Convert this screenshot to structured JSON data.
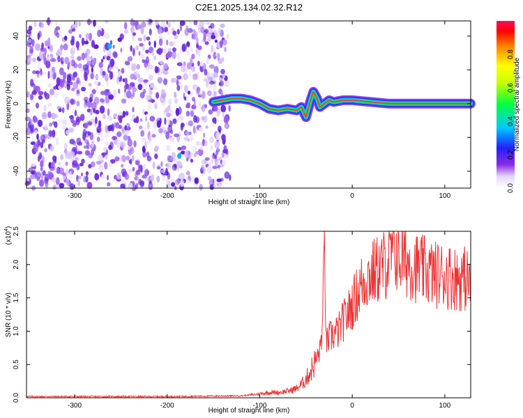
{
  "title": "C2E1.2025.134.02.32.R12",
  "chart_data": [
    {
      "type": "heatmap",
      "xlabel": "Height of straight line (km)",
      "ylabel": "Frequency (Hz)",
      "xlim": [
        -352,
        128
      ],
      "ylim": [
        -50,
        49
      ],
      "xticks": [
        -300,
        -200,
        -100,
        0,
        100
      ],
      "yticks": [
        -40,
        -20,
        0,
        20,
        40
      ],
      "colorbar": {
        "label": "Normalized spectral amplitude",
        "range": [
          0,
          1
        ],
        "ticks": [
          0.0,
          0.2,
          0.4,
          0.6,
          0.8
        ]
      },
      "noise_region_x": [
        -352,
        -132
      ],
      "signal_trace": {
        "x": [
          -150,
          -130,
          -120,
          -110,
          -100,
          -90,
          -80,
          -70,
          -60,
          -55,
          -50,
          -45,
          -42,
          -38,
          -35,
          -30,
          -25,
          -20,
          -10,
          0,
          20,
          40,
          60,
          80,
          100,
          128
        ],
        "y": [
          1,
          3,
          3,
          2,
          0,
          -3,
          -4,
          -3,
          -4,
          -2,
          -8,
          2,
          7,
          3,
          -2,
          0,
          2,
          1,
          2,
          2,
          1,
          0,
          0,
          0,
          0,
          0
        ]
      }
    },
    {
      "type": "line",
      "xlabel": "Height of straight line (km)",
      "ylabel": "SNR (10 * v/v)",
      "y_multiplier": "(x10",
      "y_multiplier_exp": "4",
      "xlim": [
        -352,
        128
      ],
      "ylim": [
        0,
        2.5
      ],
      "xticks": [
        -300,
        -200,
        -100,
        0,
        100
      ],
      "yticks": [
        "0.0",
        "0.5",
        "1.0",
        "1.5",
        "2.0",
        "2.5"
      ],
      "series": [
        {
          "color": "#ee3333",
          "x": [
            -352,
            -200,
            -120,
            -105,
            -100,
            -90,
            -80,
            -70,
            -60,
            -55,
            -50,
            -45,
            -40,
            -35,
            -32,
            -30,
            -28,
            -25,
            -20,
            -15,
            -10,
            -5,
            0,
            5,
            10,
            15,
            20,
            25,
            30,
            35,
            40,
            45,
            50,
            60,
            70,
            80,
            90,
            100,
            110,
            120,
            128
          ],
          "y": [
            0.02,
            0.02,
            0.03,
            0.05,
            0.06,
            0.08,
            0.08,
            0.1,
            0.14,
            0.2,
            0.28,
            0.4,
            0.55,
            0.7,
            1.1,
            2.35,
            0.8,
            0.9,
            0.95,
            1.0,
            1.15,
            1.25,
            1.4,
            1.55,
            1.7,
            1.8,
            1.85,
            1.9,
            1.95,
            2.0,
            2.05,
            2.25,
            2.1,
            2.05,
            1.95,
            1.9,
            1.85,
            1.85,
            1.8,
            1.8,
            1.75
          ]
        }
      ]
    }
  ]
}
